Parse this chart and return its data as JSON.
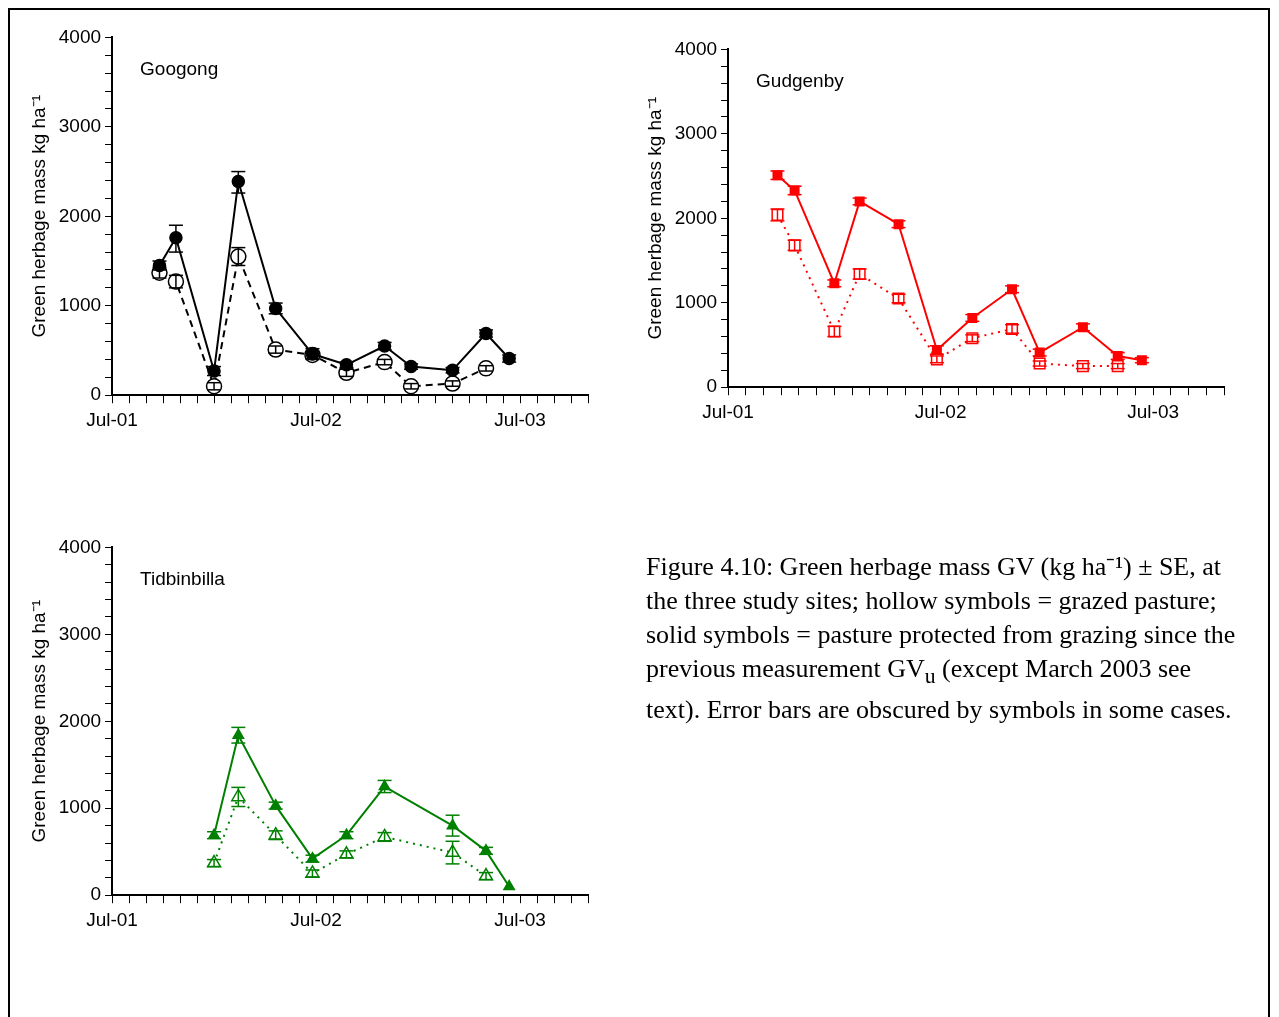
{
  "chart_data": [
    {
      "type": "line",
      "title": "Googong",
      "ylabel": "Green herbage mass kg ha⁻¹",
      "marker": "circle",
      "x": [
        "2001-09-25",
        "2001-10-24",
        "2002-01-01",
        "2002-02-14",
        "2002-04-20",
        "2002-06-25",
        "2002-08-25",
        "2002-11-02",
        "2002-12-19",
        "2003-03-02",
        "2003-05-01",
        "2003-06-12"
      ],
      "series": [
        {
          "color": "#000000",
          "line_style": "solid",
          "values": [
            1450,
            1760,
            270,
            2390,
            970,
            460,
            340,
            550,
            320,
            280,
            690,
            410
          ],
          "errors": [
            50,
            [
              1600,
              1900
            ],
            50,
            [
              2260,
              2500
            ],
            60,
            60,
            30,
            40,
            30,
            30,
            40,
            40
          ]
        },
        {
          "color": "#000000",
          "line_style": "dashed",
          "values": [
            1370,
            1270,
            100,
            1550,
            510,
            450,
            250,
            370,
            100,
            130,
            300,
            null
          ],
          "errors": [
            60,
            70,
            40,
            100,
            40,
            40,
            40,
            30,
            30,
            30,
            30,
            null
          ]
        }
      ],
      "xlim": [
        "2001-07",
        "2003-11"
      ],
      "xticks": [
        {
          "value": "2001-07",
          "label": "Jul-01"
        },
        {
          "value": "2001-08",
          "label": null
        },
        {
          "value": "2001-09",
          "label": null
        },
        {
          "value": "2001-10",
          "label": null
        },
        {
          "value": "2001-11",
          "label": null
        },
        {
          "value": "2001-12",
          "label": null
        },
        {
          "value": "2002-01",
          "label": null
        },
        {
          "value": "2002-02",
          "label": null
        },
        {
          "value": "2002-03",
          "label": null
        },
        {
          "value": "2002-04",
          "label": null
        },
        {
          "value": "2002-05",
          "label": null
        },
        {
          "value": "2002-06",
          "label": null
        },
        {
          "value": "2002-07",
          "label": "Jul-02"
        },
        {
          "value": "2002-08",
          "label": null
        },
        {
          "value": "2002-09",
          "label": null
        },
        {
          "value": "2002-10",
          "label": null
        },
        {
          "value": "2002-11",
          "label": null
        },
        {
          "value": "2002-12",
          "label": null
        },
        {
          "value": "2003-01",
          "label": null
        },
        {
          "value": "2003-02",
          "label": null
        },
        {
          "value": "2003-03",
          "label": null
        },
        {
          "value": "2003-04",
          "label": null
        },
        {
          "value": "2003-05",
          "label": null
        },
        {
          "value": "2003-06",
          "label": null
        },
        {
          "value": "2003-07",
          "label": "Jul-03"
        },
        {
          "value": "2003-08",
          "label": null
        },
        {
          "value": "2003-09",
          "label": null
        },
        {
          "value": "2003-10",
          "label": null
        },
        {
          "value": "2003-11",
          "label": null
        }
      ],
      "ylim": [
        0,
        4000
      ],
      "yticks": [
        0,
        {
          "value": 200,
          "label": null
        },
        {
          "value": 400,
          "label": null
        },
        {
          "value": 600,
          "label": null
        },
        {
          "value": 800,
          "label": null
        },
        1000,
        {
          "value": 1200,
          "label": null
        },
        {
          "value": 1400,
          "label": null
        },
        {
          "value": 1600,
          "label": null
        },
        {
          "value": 1800,
          "label": null
        },
        2000,
        {
          "value": 2200,
          "label": null
        },
        {
          "value": 2400,
          "label": null
        },
        {
          "value": 2600,
          "label": null
        },
        {
          "value": 2800,
          "label": null
        },
        3000,
        {
          "value": 3200,
          "label": null
        },
        {
          "value": 3400,
          "label": null
        },
        {
          "value": 3600,
          "label": null
        },
        {
          "value": 3800,
          "label": null
        },
        4000
      ]
    },
    {
      "type": "line",
      "title": "Gudgenby",
      "ylabel": "Green herbage mass kg ha⁻¹",
      "marker": "square",
      "x": [
        "2001-09-25",
        "2001-10-24",
        "2002-01-01",
        "2002-02-14",
        "2002-04-20",
        "2002-06-25",
        "2002-08-25",
        "2002-11-02",
        "2002-12-19",
        "2003-03-02",
        "2003-05-01",
        "2003-06-12"
      ],
      "series": [
        {
          "color": "#ff0000",
          "line_style": "solid",
          "values": [
            2510,
            2330,
            1230,
            2200,
            1930,
            440,
            820,
            1160,
            410,
            710,
            370,
            320
          ],
          "errors": [
            50,
            50,
            40,
            40,
            40,
            50,
            40,
            40,
            40,
            40,
            40,
            30
          ]
        },
        {
          "color": "#ff0000",
          "line_style": "dotted",
          "values": [
            2040,
            1680,
            660,
            1340,
            1050,
            330,
            580,
            690,
            280,
            250,
            250,
            null
          ],
          "errors": [
            70,
            60,
            60,
            60,
            50,
            40,
            40,
            50,
            30,
            30,
            30,
            null
          ]
        }
      ],
      "xlim": [
        "2001-07",
        "2003-11"
      ],
      "xticks": [
        {
          "value": "2001-07",
          "label": "Jul-01"
        },
        {
          "value": "2001-08",
          "label": null
        },
        {
          "value": "2001-09",
          "label": null
        },
        {
          "value": "2001-10",
          "label": null
        },
        {
          "value": "2001-11",
          "label": null
        },
        {
          "value": "2001-12",
          "label": null
        },
        {
          "value": "2002-01",
          "label": null
        },
        {
          "value": "2002-02",
          "label": null
        },
        {
          "value": "2002-03",
          "label": null
        },
        {
          "value": "2002-04",
          "label": null
        },
        {
          "value": "2002-05",
          "label": null
        },
        {
          "value": "2002-06",
          "label": null
        },
        {
          "value": "2002-07",
          "label": "Jul-02"
        },
        {
          "value": "2002-08",
          "label": null
        },
        {
          "value": "2002-09",
          "label": null
        },
        {
          "value": "2002-10",
          "label": null
        },
        {
          "value": "2002-11",
          "label": null
        },
        {
          "value": "2002-12",
          "label": null
        },
        {
          "value": "2003-01",
          "label": null
        },
        {
          "value": "2003-02",
          "label": null
        },
        {
          "value": "2003-03",
          "label": null
        },
        {
          "value": "2003-04",
          "label": null
        },
        {
          "value": "2003-05",
          "label": null
        },
        {
          "value": "2003-06",
          "label": null
        },
        {
          "value": "2003-07",
          "label": "Jul-03"
        },
        {
          "value": "2003-08",
          "label": null
        },
        {
          "value": "2003-09",
          "label": null
        },
        {
          "value": "2003-10",
          "label": null
        },
        {
          "value": "2003-11",
          "label": null
        }
      ],
      "ylim": [
        0,
        4000
      ],
      "yticks": [
        0,
        {
          "value": 200,
          "label": null
        },
        {
          "value": 400,
          "label": null
        },
        {
          "value": 600,
          "label": null
        },
        {
          "value": 800,
          "label": null
        },
        1000,
        {
          "value": 1200,
          "label": null
        },
        {
          "value": 1400,
          "label": null
        },
        {
          "value": 1600,
          "label": null
        },
        {
          "value": 1800,
          "label": null
        },
        2000,
        {
          "value": 2200,
          "label": null
        },
        {
          "value": 2400,
          "label": null
        },
        {
          "value": 2600,
          "label": null
        },
        {
          "value": 2800,
          "label": null
        },
        3000,
        {
          "value": 3200,
          "label": null
        },
        {
          "value": 3400,
          "label": null
        },
        {
          "value": 3600,
          "label": null
        },
        {
          "value": 3800,
          "label": null
        },
        4000
      ]
    },
    {
      "type": "line",
      "title": "Tidbinbilla",
      "ylabel": "Green herbage mass kg ha⁻¹",
      "marker": "triangle",
      "x": [
        "2002-01-01",
        "2002-02-14",
        "2002-04-20",
        "2002-06-25",
        "2002-08-25",
        "2002-11-02",
        "2003-03-02",
        "2003-05-01",
        "2003-06-12"
      ],
      "series": [
        {
          "color": "#008000",
          "line_style": "solid",
          "values": [
            690,
            1840,
            1030,
            420,
            690,
            1250,
            800,
            510,
            100
          ],
          "errors": [
            40,
            90,
            40,
            40,
            40,
            70,
            120,
            40,
            null
          ]
        },
        {
          "color": "#008000",
          "line_style": "dotted",
          "values": [
            370,
            1130,
            690,
            250,
            470,
            670,
            490,
            220,
            null
          ],
          "errors": [
            40,
            110,
            50,
            40,
            40,
            50,
            130,
            40,
            null
          ]
        }
      ],
      "xlim": [
        "2001-07",
        "2003-11"
      ],
      "xticks": [
        {
          "value": "2001-07",
          "label": "Jul-01"
        },
        {
          "value": "2001-08",
          "label": null
        },
        {
          "value": "2001-09",
          "label": null
        },
        {
          "value": "2001-10",
          "label": null
        },
        {
          "value": "2001-11",
          "label": null
        },
        {
          "value": "2001-12",
          "label": null
        },
        {
          "value": "2002-01",
          "label": null
        },
        {
          "value": "2002-02",
          "label": null
        },
        {
          "value": "2002-03",
          "label": null
        },
        {
          "value": "2002-04",
          "label": null
        },
        {
          "value": "2002-05",
          "label": null
        },
        {
          "value": "2002-06",
          "label": null
        },
        {
          "value": "2002-07",
          "label": "Jul-02"
        },
        {
          "value": "2002-08",
          "label": null
        },
        {
          "value": "2002-09",
          "label": null
        },
        {
          "value": "2002-10",
          "label": null
        },
        {
          "value": "2002-11",
          "label": null
        },
        {
          "value": "2002-12",
          "label": null
        },
        {
          "value": "2003-01",
          "label": null
        },
        {
          "value": "2003-02",
          "label": null
        },
        {
          "value": "2003-03",
          "label": null
        },
        {
          "value": "2003-04",
          "label": null
        },
        {
          "value": "2003-05",
          "label": null
        },
        {
          "value": "2003-06",
          "label": null
        },
        {
          "value": "2003-07",
          "label": "Jul-03"
        },
        {
          "value": "2003-08",
          "label": null
        },
        {
          "value": "2003-09",
          "label": null
        },
        {
          "value": "2003-10",
          "label": null
        },
        {
          "value": "2003-11",
          "label": null
        }
      ],
      "ylim": [
        0,
        4000
      ],
      "yticks": [
        0,
        {
          "value": 200,
          "label": null
        },
        {
          "value": 400,
          "label": null
        },
        {
          "value": 600,
          "label": null
        },
        {
          "value": 800,
          "label": null
        },
        1000,
        {
          "value": 1200,
          "label": null
        },
        {
          "value": 1400,
          "label": null
        },
        {
          "value": 1600,
          "label": null
        },
        {
          "value": 1800,
          "label": null
        },
        2000,
        {
          "value": 2200,
          "label": null
        },
        {
          "value": 2400,
          "label": null
        },
        {
          "value": 2600,
          "label": null
        },
        {
          "value": 2800,
          "label": null
        },
        3000,
        {
          "value": 3200,
          "label": null
        },
        {
          "value": 3400,
          "label": null
        },
        {
          "value": 3600,
          "label": null
        },
        {
          "value": 3800,
          "label": null
        },
        4000
      ]
    },
    {
      "type": "other",
      "annotations": [
        "Figure 4.10:  Green herbage mass GV (kg ha⁻¹) ± SE, at the three study sites; hollow symbols = grazed pasture; solid symbols = pasture protected from grazing since the previous measurement GV$_{u}$ (except March 2003 see text).  Error bars are obscured by symbols in some cases."
      ]
    }
  ]
}
